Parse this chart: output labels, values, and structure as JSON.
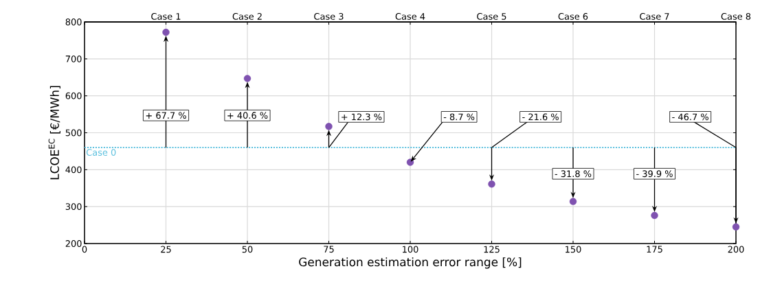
{
  "chart_data": {
    "type": "scatter",
    "xlabel": "Generation estimation error range [%]",
    "ylabel": "LCOE$^{EC}$ [€/MWh]",
    "x": [
      25,
      50,
      75,
      100,
      125,
      150,
      175,
      200
    ],
    "series": [
      {
        "color": "#7f52b0",
        "values": [
          772,
          647,
          517,
          420,
          361,
          314,
          276,
          245
        ]
      }
    ],
    "xlim": [
      0,
      200
    ],
    "xticks": [
      0,
      25,
      50,
      75,
      100,
      125,
      150,
      175,
      200
    ],
    "ylim": [
      200,
      800
    ],
    "yticks": [
      200,
      300,
      400,
      500,
      600,
      700,
      800
    ],
    "ref_lines": [
      {
        "axis": "y",
        "value": 460,
        "label": "Case 0",
        "color": "#5bc0de",
        "line_style": "dotted"
      }
    ],
    "annotations": [
      "+ 67.7 %",
      "+ 40.6 %",
      {
        "text": "+ 12.3 %",
        "x": 75,
        "y": 460
      },
      {
        "text": "- 8.7 %",
        "x": 100,
        "y": 420
      },
      {
        "text": "- 21.6 %",
        "x": 125,
        "y": 460
      },
      "- 31.8 %",
      "- 39.9 %",
      {
        "text": "- 46.7 %",
        "x": 200,
        "y": 460
      },
      "Case 1",
      "Case 2",
      "Case 3",
      "Case 4",
      "Case 5",
      "Case 6",
      "Case 7",
      "Case 8"
    ],
    "grid": true,
    "marker": "circle"
  }
}
